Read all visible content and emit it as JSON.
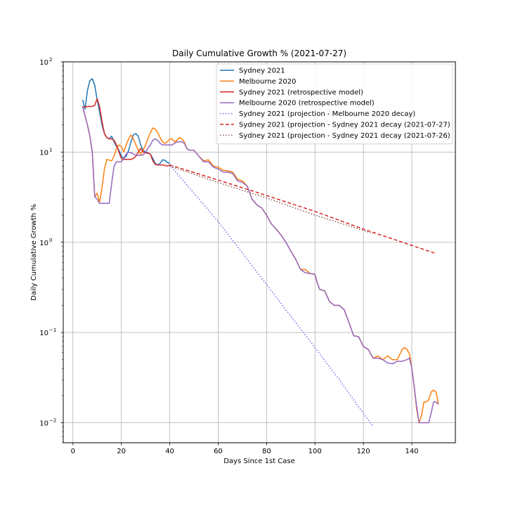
{
  "chart_data": {
    "type": "line",
    "title": "Daily Cumulative Growth % (2021-07-27)",
    "xlabel": "Days Since 1st Case",
    "ylabel": "Daily Cumulative Growth %",
    "xlim": [
      -4,
      158
    ],
    "ylim": [
      0.006,
      100
    ],
    "yscale": "log",
    "grid": true,
    "legend_position": "top-right",
    "x_ticks": [
      0,
      20,
      40,
      60,
      80,
      100,
      120,
      140
    ],
    "y_ticks": [
      {
        "value": 0.01,
        "base": "10",
        "exp": "−2"
      },
      {
        "value": 0.1,
        "base": "10",
        "exp": "−1"
      },
      {
        "value": 1,
        "base": "10",
        "exp": "0"
      },
      {
        "value": 10,
        "base": "10",
        "exp": "1"
      },
      {
        "value": 100,
        "base": "10",
        "exp": "2"
      }
    ],
    "series": [
      {
        "name": "Sydney 2021",
        "color": "#1f77b4",
        "style": "solid",
        "points": [
          [
            4,
            38
          ],
          [
            5,
            30
          ],
          [
            6,
            48
          ],
          [
            7,
            62
          ],
          [
            8,
            65
          ],
          [
            9,
            55
          ],
          [
            10,
            38
          ],
          [
            11,
            28
          ],
          [
            12,
            20
          ],
          [
            13,
            16
          ],
          [
            14,
            14.5
          ],
          [
            15,
            14
          ],
          [
            16,
            15
          ],
          [
            17,
            13
          ],
          [
            18,
            11.5
          ],
          [
            19,
            10.5
          ],
          [
            20,
            9
          ],
          [
            21,
            8.5
          ],
          [
            22,
            9
          ],
          [
            23,
            10.5
          ],
          [
            24,
            13
          ],
          [
            25,
            15.5
          ],
          [
            26,
            16
          ],
          [
            27,
            15
          ],
          [
            28,
            12
          ],
          [
            29,
            10.5
          ],
          [
            30,
            10
          ],
          [
            31,
            9.8
          ],
          [
            32,
            9.5
          ],
          [
            33,
            8.5
          ],
          [
            34,
            7.5
          ],
          [
            35,
            7.2
          ],
          [
            36,
            7.5
          ],
          [
            37,
            8.2
          ],
          [
            38,
            8.1
          ],
          [
            39,
            7.7
          ],
          [
            40,
            7.5
          ]
        ]
      },
      {
        "name": "Melbourne 2020",
        "color": "#ff7f0e",
        "style": "solid",
        "points": [
          [
            4,
            32
          ],
          [
            6,
            20
          ],
          [
            7,
            15
          ],
          [
            8,
            10
          ],
          [
            9,
            3.2
          ],
          [
            10,
            3.5
          ],
          [
            11,
            2.8
          ],
          [
            12,
            4
          ],
          [
            13,
            6.5
          ],
          [
            14,
            8.3
          ],
          [
            16,
            8
          ],
          [
            17,
            9
          ],
          [
            18,
            11
          ],
          [
            19,
            12
          ],
          [
            20,
            11.5
          ],
          [
            21,
            10
          ],
          [
            22,
            12
          ],
          [
            23,
            14
          ],
          [
            24,
            15.5
          ],
          [
            25,
            14
          ],
          [
            26,
            12
          ],
          [
            27,
            10.5
          ],
          [
            28,
            9.5
          ],
          [
            29,
            10.5
          ],
          [
            30,
            12
          ],
          [
            31,
            14
          ],
          [
            32,
            16.5
          ],
          [
            33,
            18.5
          ],
          [
            34,
            18
          ],
          [
            35,
            16.5
          ],
          [
            36,
            14.5
          ],
          [
            37,
            13
          ],
          [
            38,
            12.5
          ],
          [
            39,
            13
          ],
          [
            40,
            14
          ],
          [
            41,
            14
          ],
          [
            42,
            13
          ],
          [
            43,
            13.5
          ],
          [
            44,
            14.5
          ],
          [
            45,
            14
          ],
          [
            46,
            13
          ],
          [
            47,
            11
          ],
          [
            48,
            10.5
          ],
          [
            50,
            10.5
          ],
          [
            52,
            9
          ],
          [
            54,
            8
          ],
          [
            56,
            8.2
          ],
          [
            58,
            7
          ],
          [
            60,
            6.8
          ],
          [
            62,
            6.3
          ],
          [
            64,
            6.2
          ],
          [
            66,
            6
          ],
          [
            68,
            5
          ],
          [
            70,
            4.8
          ],
          [
            72,
            4.2
          ],
          [
            74,
            3
          ],
          [
            76,
            2.6
          ],
          [
            78,
            2.4
          ],
          [
            80,
            2
          ],
          [
            82,
            1.6
          ],
          [
            84,
            1.4
          ],
          [
            86,
            1.2
          ],
          [
            88,
            1
          ],
          [
            90,
            0.8
          ],
          [
            92,
            0.65
          ],
          [
            94,
            0.5
          ],
          [
            96,
            0.5
          ],
          [
            98,
            0.45
          ],
          [
            100,
            0.44
          ],
          [
            101,
            0.35
          ],
          [
            102,
            0.3
          ],
          [
            104,
            0.29
          ],
          [
            106,
            0.22
          ],
          [
            108,
            0.2
          ],
          [
            110,
            0.2
          ],
          [
            112,
            0.18
          ],
          [
            114,
            0.13
          ],
          [
            116,
            0.092
          ],
          [
            118,
            0.09
          ],
          [
            120,
            0.07
          ],
          [
            122,
            0.065
          ],
          [
            124,
            0.052
          ],
          [
            126,
            0.055
          ],
          [
            128,
            0.05
          ],
          [
            130,
            0.055
          ],
          [
            132,
            0.05
          ],
          [
            134,
            0.05
          ],
          [
            136,
            0.065
          ],
          [
            137,
            0.068
          ],
          [
            138,
            0.065
          ],
          [
            139,
            0.058
          ],
          [
            140,
            0.04
          ],
          [
            141,
            0.025
          ],
          [
            142,
            0.014
          ],
          [
            143,
            0.01
          ],
          [
            144,
            0.012
          ],
          [
            145,
            0.017
          ],
          [
            146,
            0.017
          ],
          [
            147,
            0.018
          ],
          [
            148,
            0.022
          ],
          [
            149,
            0.023
          ],
          [
            150,
            0.022
          ],
          [
            151,
            0.016
          ]
        ]
      },
      {
        "name": "Sydney 2021 (retrospective model)",
        "color": "#d62728",
        "style": "solid",
        "points": [
          [
            4,
            32
          ],
          [
            5,
            31.5
          ],
          [
            6,
            32
          ],
          [
            7,
            32
          ],
          [
            8,
            32
          ],
          [
            9,
            33
          ],
          [
            10,
            39
          ],
          [
            11,
            32
          ],
          [
            12,
            22
          ],
          [
            13,
            16
          ],
          [
            14,
            14.5
          ],
          [
            15,
            14
          ],
          [
            16,
            14
          ],
          [
            17,
            13.5
          ],
          [
            18,
            12
          ],
          [
            19,
            10
          ],
          [
            20,
            8.5
          ],
          [
            21,
            8.3
          ],
          [
            22,
            8.3
          ],
          [
            23,
            8.3
          ],
          [
            24,
            8.3
          ],
          [
            25,
            8.5
          ],
          [
            26,
            9
          ],
          [
            27,
            10
          ],
          [
            28,
            11
          ],
          [
            29,
            10
          ],
          [
            30,
            9.8
          ],
          [
            31,
            9.7
          ],
          [
            32,
            9.5
          ],
          [
            33,
            8
          ],
          [
            34,
            7.3
          ],
          [
            35,
            7.2
          ],
          [
            36,
            7.2
          ],
          [
            37,
            7.2
          ],
          [
            38,
            7.1
          ],
          [
            39,
            7
          ],
          [
            40,
            7.2
          ]
        ]
      },
      {
        "name": "Melbourne 2020 (retrospective model)",
        "color": "#9467bd",
        "style": "solid",
        "points": [
          [
            4,
            32
          ],
          [
            6,
            20
          ],
          [
            7,
            15
          ],
          [
            8,
            10
          ],
          [
            9,
            3.2
          ],
          [
            10,
            3
          ],
          [
            11,
            2.7
          ],
          [
            12,
            2.7
          ],
          [
            13,
            2.7
          ],
          [
            14,
            2.7
          ],
          [
            15,
            2.7
          ],
          [
            16,
            4.5
          ],
          [
            17,
            7
          ],
          [
            18,
            7.8
          ],
          [
            19,
            7.8
          ],
          [
            20,
            7.8
          ],
          [
            21,
            8.5
          ],
          [
            22,
            9.5
          ],
          [
            23,
            10
          ],
          [
            24,
            9.8
          ],
          [
            25,
            9.5
          ],
          [
            26,
            9.2
          ],
          [
            27,
            9.2
          ],
          [
            28,
            9.2
          ],
          [
            29,
            9.3
          ],
          [
            30,
            10
          ],
          [
            31,
            11
          ],
          [
            32,
            12
          ],
          [
            33,
            13.5
          ],
          [
            34,
            14
          ],
          [
            35,
            13.5
          ],
          [
            36,
            12.5
          ],
          [
            37,
            12
          ],
          [
            38,
            12
          ],
          [
            39,
            12
          ],
          [
            40,
            12
          ],
          [
            41,
            12
          ],
          [
            42,
            12.5
          ],
          [
            43,
            13
          ],
          [
            44,
            13
          ],
          [
            45,
            13
          ],
          [
            46,
            12.5
          ],
          [
            47,
            11
          ],
          [
            48,
            10.5
          ],
          [
            50,
            10.5
          ],
          [
            52,
            9
          ],
          [
            54,
            7.8
          ],
          [
            56,
            7.8
          ],
          [
            58,
            6.8
          ],
          [
            60,
            6.5
          ],
          [
            62,
            6
          ],
          [
            64,
            6
          ],
          [
            66,
            5.8
          ],
          [
            68,
            4.8
          ],
          [
            70,
            4.6
          ],
          [
            72,
            4.2
          ],
          [
            74,
            3
          ],
          [
            76,
            2.6
          ],
          [
            78,
            2.4
          ],
          [
            80,
            2
          ],
          [
            82,
            1.6
          ],
          [
            84,
            1.4
          ],
          [
            86,
            1.2
          ],
          [
            88,
            1
          ],
          [
            90,
            0.8
          ],
          [
            92,
            0.65
          ],
          [
            94,
            0.5
          ],
          [
            96,
            0.46
          ],
          [
            98,
            0.45
          ],
          [
            100,
            0.44
          ],
          [
            101,
            0.35
          ],
          [
            102,
            0.3
          ],
          [
            104,
            0.29
          ],
          [
            106,
            0.22
          ],
          [
            108,
            0.2
          ],
          [
            110,
            0.2
          ],
          [
            112,
            0.18
          ],
          [
            114,
            0.13
          ],
          [
            116,
            0.092
          ],
          [
            118,
            0.09
          ],
          [
            120,
            0.07
          ],
          [
            122,
            0.065
          ],
          [
            124,
            0.052
          ],
          [
            126,
            0.052
          ],
          [
            128,
            0.05
          ],
          [
            130,
            0.046
          ],
          [
            132,
            0.045
          ],
          [
            134,
            0.048
          ],
          [
            136,
            0.048
          ],
          [
            138,
            0.05
          ],
          [
            139,
            0.052
          ],
          [
            140,
            0.04
          ],
          [
            141,
            0.025
          ],
          [
            142,
            0.015
          ],
          [
            143,
            0.01
          ],
          [
            144,
            0.01
          ],
          [
            145,
            0.01
          ],
          [
            146,
            0.01
          ],
          [
            147,
            0.01
          ],
          [
            148,
            0.013
          ],
          [
            149,
            0.017
          ],
          [
            150,
            0.017
          ],
          [
            151,
            0.016
          ]
        ]
      },
      {
        "name": "Sydney 2021 (projection - Melbourne 2020 decay)",
        "color": "#7b68ee",
        "style": "dotted",
        "points": [
          [
            40,
            7.2
          ],
          [
            60,
            1.7
          ],
          [
            80,
            0.34
          ],
          [
            100,
            0.068
          ],
          [
            110,
            0.03
          ],
          [
            124,
            0.009
          ]
        ]
      },
      {
        "name": "Sydney 2021 (projection - Sydney 2021 decay (2021-07-27)",
        "color": "#d62728",
        "style": "dashed",
        "points": [
          [
            40,
            7.2
          ],
          [
            60,
            4.9
          ],
          [
            80,
            3.3
          ],
          [
            100,
            2.2
          ],
          [
            120,
            1.4
          ],
          [
            150,
            0.75
          ]
        ]
      },
      {
        "name": "Sydney 2021 (projection - Sydney 2021 decay (2021-07-26)",
        "color": "#8c564b",
        "style": "dotted",
        "points": [
          [
            40,
            7
          ],
          [
            60,
            4.6
          ],
          [
            80,
            3.1
          ],
          [
            100,
            2
          ],
          [
            124,
            1.25
          ]
        ]
      }
    ]
  }
}
